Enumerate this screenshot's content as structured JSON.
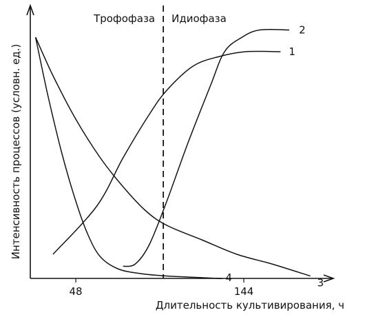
{
  "chart_data": {
    "type": "line",
    "xlabel": "Длительность культивирования, ч",
    "ylabel": "Интенсивность процессов (условн. ед.)",
    "xticks": [
      48,
      144
    ],
    "xlim": [
      22,
      192
    ],
    "ylim": [
      0,
      100
    ],
    "phases": [
      {
        "name": "Трофофаза",
        "x_end": 98
      },
      {
        "name": "Идиофаза",
        "x_start": 98
      }
    ],
    "divider_x": 98,
    "series": [
      {
        "name": "1",
        "points": [
          [
            35,
            10
          ],
          [
            60,
            30
          ],
          [
            75,
            50
          ],
          [
            90,
            68
          ],
          [
            100,
            78
          ],
          [
            115,
            88
          ],
          [
            130,
            92
          ],
          [
            145,
            94
          ],
          [
            165,
            94
          ]
        ]
      },
      {
        "name": "2",
        "points": [
          [
            75,
            5
          ],
          [
            82,
            6
          ],
          [
            90,
            14
          ],
          [
            100,
            32
          ],
          [
            112,
            56
          ],
          [
            125,
            80
          ],
          [
            133,
            94
          ],
          [
            143,
            100
          ],
          [
            153,
            103
          ],
          [
            170,
            103
          ]
        ]
      },
      {
        "name": "3",
        "points": [
          [
            25,
            100
          ],
          [
            35,
            84
          ],
          [
            48,
            66
          ],
          [
            62,
            50
          ],
          [
            75,
            38
          ],
          [
            88,
            28
          ],
          [
            100,
            22
          ],
          [
            120,
            16
          ],
          [
            140,
            10
          ],
          [
            160,
            6
          ],
          [
            182,
            1
          ]
        ]
      },
      {
        "name": "4",
        "points": [
          [
            25,
            100
          ],
          [
            32,
            76
          ],
          [
            40,
            52
          ],
          [
            48,
            32
          ],
          [
            55,
            18
          ],
          [
            62,
            9
          ],
          [
            72,
            4
          ],
          [
            85,
            2
          ],
          [
            100,
            1
          ],
          [
            130,
            0
          ],
          [
            128,
            0
          ]
        ]
      }
    ]
  }
}
